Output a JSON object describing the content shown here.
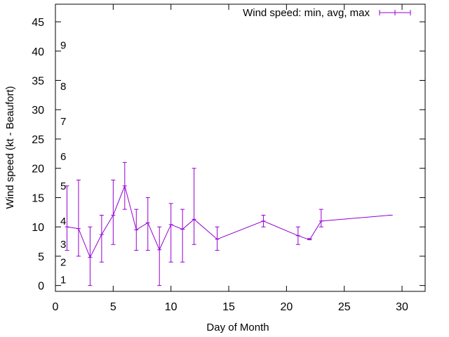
{
  "chart_data": {
    "type": "line",
    "title": "",
    "xlabel": "Day of Month",
    "ylabel": "Wind speed (kt - Beaufort)",
    "xlim": [
      0,
      32
    ],
    "ylim": [
      -1,
      48
    ],
    "xticks": [
      0,
      5,
      10,
      15,
      20,
      25,
      30
    ],
    "yticks": [
      0,
      5,
      10,
      15,
      20,
      25,
      30,
      35,
      40,
      45
    ],
    "grid": false,
    "legend": {
      "position": "top-right",
      "entries": [
        "Wind speed: min, avg, max"
      ]
    },
    "beaufort_scale": [
      {
        "label": "1",
        "kt": 1
      },
      {
        "label": "2",
        "kt": 4
      },
      {
        "label": "3",
        "kt": 7
      },
      {
        "label": "4",
        "kt": 11
      },
      {
        "label": "5",
        "kt": 17
      },
      {
        "label": "6",
        "kt": 22
      },
      {
        "label": "7",
        "kt": 28
      },
      {
        "label": "8",
        "kt": 34
      },
      {
        "label": "9",
        "kt": 41
      }
    ],
    "series": [
      {
        "name": "Wind speed: min, avg, max",
        "color": "#9400d3",
        "points": [
          {
            "x": 1,
            "min": 6,
            "avg": 10,
            "max": 17
          },
          {
            "x": 2,
            "min": 5,
            "avg": 9.7,
            "max": 18
          },
          {
            "x": 3,
            "min": 0,
            "avg": 4.8,
            "max": 10
          },
          {
            "x": 4,
            "min": 4,
            "avg": 8.7,
            "max": 12
          },
          {
            "x": 5,
            "min": 7,
            "avg": 12,
            "max": 18
          },
          {
            "x": 6,
            "min": 13,
            "avg": 17,
            "max": 21
          },
          {
            "x": 7,
            "min": 6,
            "avg": 9.5,
            "max": 13
          },
          {
            "x": 8,
            "min": 6,
            "avg": 10.7,
            "max": 15
          },
          {
            "x": 9,
            "min": 0,
            "avg": 6.1,
            "max": 10
          },
          {
            "x": 10,
            "min": 4,
            "avg": 10.4,
            "max": 14
          },
          {
            "x": 11,
            "min": 4,
            "avg": 9.6,
            "max": 13
          },
          {
            "x": 12,
            "min": 7,
            "avg": 11.3,
            "max": 20
          },
          {
            "x": 14,
            "min": 6,
            "avg": 7.9,
            "max": 10
          },
          {
            "x": 18,
            "min": 10,
            "avg": 11,
            "max": 12
          },
          {
            "x": 21,
            "min": 7,
            "avg": 8.5,
            "max": 10
          },
          {
            "x": 22,
            "min": 8,
            "avg": 7.8,
            "max": 8
          },
          {
            "x": 23,
            "min": 10,
            "avg": 11,
            "max": 13
          },
          {
            "x": 29,
            "min": 12,
            "avg": 12,
            "max": 12
          }
        ]
      }
    ]
  }
}
